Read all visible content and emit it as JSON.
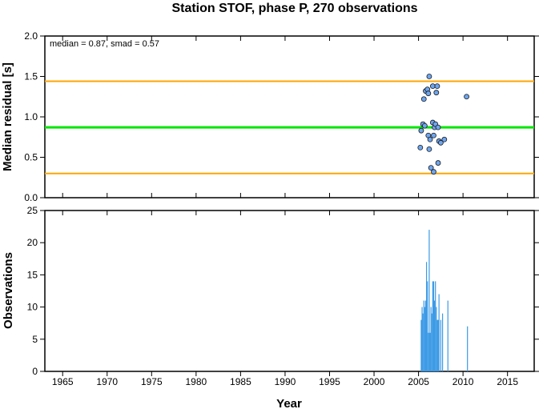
{
  "chart_data": {
    "title": "Station STOF, phase P, 270 observations",
    "xlabel": "Year",
    "x_ticks": [
      1965,
      1970,
      1975,
      1980,
      1985,
      1990,
      1995,
      2000,
      2005,
      2010,
      2015
    ],
    "xlim": [
      1963,
      2018
    ],
    "colors": {
      "median_line": "#00e600",
      "bound_lines": "#ffa500",
      "points": "#6ea6f0",
      "bars": "#3c9ae6"
    },
    "panels": [
      {
        "type": "scatter",
        "ylabel": "Median residual [s]",
        "ylim": [
          0,
          2
        ],
        "y_ticks": [
          0.0,
          0.5,
          1.0,
          1.5,
          2.0
        ],
        "y_tick_labels": [
          "0.0",
          "0.5",
          "1.0",
          "1.5",
          "2.0"
        ],
        "annotation": "median = 0.87, smad = 0.57",
        "median": 0.87,
        "lower_bound": 0.3,
        "upper_bound": 1.44,
        "points": [
          [
            2005.2,
            0.62
          ],
          [
            2005.3,
            0.83
          ],
          [
            2005.5,
            0.91
          ],
          [
            2005.7,
            0.89
          ],
          [
            2005.6,
            1.22
          ],
          [
            2005.8,
            1.32
          ],
          [
            2006.0,
            1.34
          ],
          [
            2006.1,
            1.29
          ],
          [
            2006.2,
            1.5
          ],
          [
            2006.1,
            0.77
          ],
          [
            2006.3,
            0.72
          ],
          [
            2006.2,
            0.6
          ],
          [
            2006.4,
            0.37
          ],
          [
            2006.7,
            0.32
          ],
          [
            2006.6,
            0.93
          ],
          [
            2006.8,
            0.87
          ],
          [
            2006.9,
            0.91
          ],
          [
            2006.7,
            0.77
          ],
          [
            2007.0,
            1.3
          ],
          [
            2006.6,
            1.38
          ],
          [
            2007.1,
            1.38
          ],
          [
            2007.2,
            0.87
          ],
          [
            2007.3,
            0.7
          ],
          [
            2007.5,
            0.68
          ],
          [
            2007.9,
            0.72
          ],
          [
            2007.2,
            0.43
          ],
          [
            2010.4,
            1.25
          ]
        ]
      },
      {
        "type": "bar",
        "ylabel": "Observations",
        "ylim": [
          0,
          25
        ],
        "y_ticks": [
          0,
          5,
          10,
          15,
          20,
          25
        ],
        "bars": [
          [
            2005.3,
            8
          ],
          [
            2005.4,
            10
          ],
          [
            2005.5,
            9
          ],
          [
            2005.6,
            11
          ],
          [
            2005.7,
            10
          ],
          [
            2005.8,
            11
          ],
          [
            2005.9,
            17
          ],
          [
            2006.0,
            14
          ],
          [
            2006.1,
            6
          ],
          [
            2006.2,
            22
          ],
          [
            2006.3,
            6
          ],
          [
            2006.4,
            10
          ],
          [
            2006.5,
            9
          ],
          [
            2006.6,
            14
          ],
          [
            2006.7,
            14
          ],
          [
            2006.8,
            11
          ],
          [
            2006.9,
            14
          ],
          [
            2007.0,
            10
          ],
          [
            2007.1,
            8
          ],
          [
            2007.2,
            8
          ],
          [
            2007.3,
            12
          ],
          [
            2007.5,
            8
          ],
          [
            2007.7,
            9
          ],
          [
            2008.3,
            11
          ],
          [
            2010.5,
            7
          ]
        ]
      }
    ]
  }
}
